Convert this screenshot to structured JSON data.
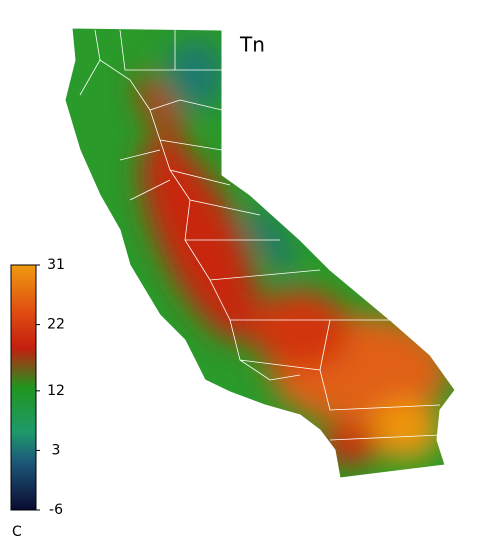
{
  "title": "Tn",
  "colorbar": {
    "min": -6,
    "max": 31,
    "ticks": [
      -6,
      3,
      12,
      22,
      31
    ],
    "unit": "C"
  }
}
